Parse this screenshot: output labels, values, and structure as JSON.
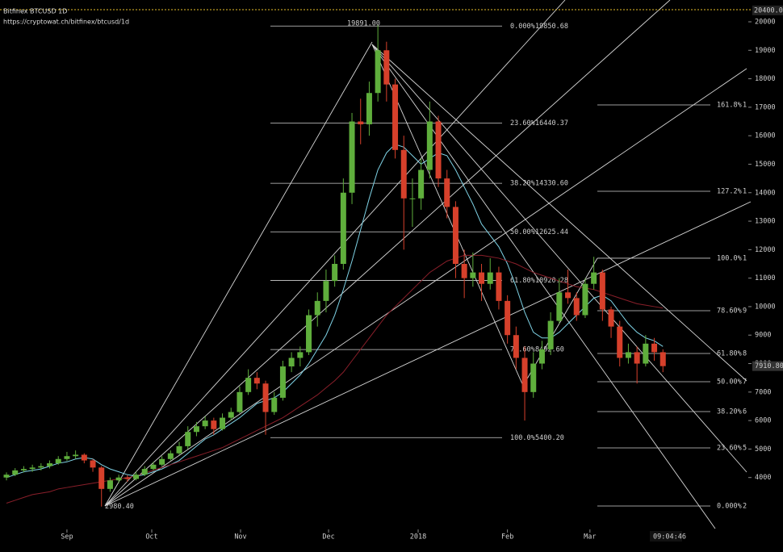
{
  "chart_data": {
    "type": "candlestick",
    "title": "Bitfinex BTCUSD 1D",
    "subtitle": "https://cryptowat.ch/bitfinex/btcusd/1d",
    "categories": [
      null,
      null,
      null,
      null,
      null,
      null,
      null,
      null,
      null,
      null,
      null,
      null,
      null,
      null,
      null,
      null,
      null,
      null,
      null,
      null,
      null,
      null,
      null,
      null,
      null,
      null,
      null,
      null,
      null,
      null,
      null,
      null,
      null,
      null,
      null,
      null,
      null,
      null,
      null,
      null,
      null,
      null,
      null,
      null,
      null,
      null,
      null,
      null,
      null,
      null,
      null,
      null,
      null,
      null,
      null,
      null,
      null,
      null,
      null,
      null,
      null,
      null,
      null,
      null,
      null,
      null,
      null,
      null,
      null,
      null,
      null,
      null,
      null,
      null,
      null,
      null,
      null
    ],
    "open": [
      4000,
      4100,
      4250,
      4300,
      4350,
      4400,
      4500,
      4650,
      4750,
      4800,
      4600,
      4350,
      3600,
      3900,
      4000,
      3950,
      4100,
      4300,
      4450,
      4650,
      4850,
      5100,
      5600,
      5800,
      6000,
      5700,
      6100,
      6300,
      7000,
      7500,
      7300,
      6300,
      6800,
      7900,
      8200,
      8400,
      9700,
      10200,
      10900,
      11500,
      14000,
      16500,
      16400,
      17500,
      19000,
      17800,
      15500,
      13800,
      13800,
      14800,
      16500,
      14500,
      13500,
      11500,
      11000,
      11200,
      10800,
      11200,
      10200,
      9000,
      8200,
      7000,
      8000,
      8500,
      9500,
      10500,
      10300,
      9700,
      10800,
      11200,
      9900,
      9300,
      8200,
      8400,
      8000,
      8700,
      8400
    ],
    "high": [
      4180,
      4330,
      4400,
      4450,
      4500,
      4600,
      4750,
      4900,
      4950,
      4850,
      4650,
      4400,
      4000,
      4100,
      4080,
      4200,
      4400,
      4550,
      4750,
      4950,
      5250,
      5800,
      5950,
      6150,
      6100,
      6250,
      6450,
      7200,
      7800,
      7700,
      7400,
      7000,
      8100,
      8400,
      8600,
      9900,
      10500,
      11300,
      11800,
      14500,
      16800,
      17300,
      17900,
      19891,
      19300,
      18000,
      16000,
      14500,
      15200,
      17200,
      16700,
      14800,
      13700,
      12000,
      11900,
      11500,
      11700,
      11400,
      10400,
      9300,
      8600,
      8400,
      8800,
      9800,
      11000,
      11300,
      10500,
      11000,
      11750,
      11300,
      10000,
      9500,
      8700,
      8600,
      9000,
      8900,
      8500
    ],
    "low": [
      3900,
      4050,
      4180,
      4200,
      4250,
      4320,
      4450,
      4580,
      4650,
      4500,
      4200,
      2980,
      3500,
      3800,
      3850,
      3900,
      4050,
      4250,
      4400,
      4600,
      4800,
      5000,
      5450,
      5700,
      5500,
      5650,
      6000,
      6250,
      6900,
      7100,
      5500,
      6200,
      6700,
      7700,
      7900,
      8300,
      9300,
      9800,
      10700,
      11300,
      13600,
      15700,
      16000,
      17200,
      17200,
      15200,
      12000,
      12800,
      13400,
      14500,
      14200,
      13100,
      11000,
      10300,
      10700,
      10200,
      10600,
      9900,
      8700,
      7800,
      6000,
      6800,
      7800,
      8300,
      9400,
      10100,
      9500,
      9600,
      10600,
      9500,
      8900,
      7900,
      8000,
      7300,
      7900,
      8100,
      7700
    ],
    "close": [
      4100,
      4250,
      4300,
      4350,
      4400,
      4500,
      4650,
      4750,
      4800,
      4600,
      4350,
      3600,
      3900,
      4000,
      3950,
      4100,
      4300,
      4450,
      4650,
      4850,
      5100,
      5600,
      5800,
      6000,
      5700,
      6100,
      6300,
      7000,
      7500,
      7300,
      6300,
      6800,
      7900,
      8200,
      8400,
      9700,
      10200,
      10900,
      11500,
      14000,
      16500,
      16400,
      17500,
      19000,
      17800,
      15500,
      13800,
      13800,
      14800,
      16500,
      14500,
      13500,
      11500,
      11000,
      11200,
      10800,
      11200,
      10200,
      9000,
      8200,
      7000,
      8000,
      8500,
      9500,
      10500,
      10300,
      9700,
      10800,
      11200,
      9900,
      9300,
      8200,
      8400,
      8000,
      8700,
      8400,
      7910.8
    ],
    "up_color": "#5fae3c",
    "down_color": "#d6402b",
    "series": [
      {
        "color": "#7fd3e6",
        "values": [
          4000,
          4100,
          4200,
          4250,
          4300,
          4400,
          4500,
          4550,
          4650,
          4700,
          4650,
          4450,
          4300,
          4200,
          4100,
          4050,
          4100,
          4200,
          4300,
          4450,
          4600,
          4850,
          5100,
          5350,
          5500,
          5700,
          5900,
          6100,
          6350,
          6600,
          6700,
          6800,
          7000,
          7300,
          7600,
          8000,
          8500,
          9000,
          9700,
          10600,
          11600,
          12700,
          13800,
          14800,
          15400,
          15700,
          15600,
          15300,
          15000,
          15200,
          15400,
          15300,
          14800,
          14200,
          13600,
          12900,
          12500,
          12100,
          11500,
          10700,
          9800,
          9100,
          8900,
          8900,
          9100,
          9400,
          9700,
          10000,
          10300,
          10400,
          10200,
          9800,
          9400,
          9100,
          8900,
          8800,
          8600
        ]
      },
      {
        "color": "#8a1f2a",
        "values": [
          3100,
          3200,
          3300,
          3400,
          3450,
          3500,
          3600,
          3650,
          3700,
          3750,
          3800,
          3850,
          3900,
          3950,
          4000,
          4050,
          4150,
          4250,
          4350,
          4450,
          4550,
          4650,
          4750,
          4850,
          4950,
          5050,
          5200,
          5350,
          5500,
          5650,
          5800,
          5950,
          6100,
          6300,
          6500,
          6700,
          6900,
          7150,
          7400,
          7700,
          8100,
          8500,
          8900,
          9300,
          9700,
          10000,
          10300,
          10600,
          10900,
          11200,
          11400,
          11600,
          11700,
          11800,
          11800,
          11800,
          11750,
          11700,
          11600,
          11500,
          11350,
          11200,
          11100,
          11000,
          10900,
          10800,
          10700,
          10650,
          10600,
          10500,
          10400,
          10300,
          10200,
          10100,
          10050,
          10000,
          9950
        ]
      }
    ],
    "xlim": [
      -0.75,
      88.5
    ],
    "xticks": [
      {
        "value": 7.0,
        "label": "Sep"
      },
      {
        "value": 16.82,
        "label": "Oct"
      },
      {
        "value": 27.1,
        "label": "Nov"
      },
      {
        "value": 37.29,
        "label": "Dec"
      },
      {
        "value": 47.66,
        "label": "2018"
      },
      {
        "value": 58.0,
        "label": "Feb"
      },
      {
        "value": 67.55,
        "label": "Mar"
      }
    ],
    "ylim": [
      1385,
      20765
    ],
    "yticks": [
      4000,
      5000,
      6000,
      7000,
      8000,
      9000,
      10000,
      11000,
      12000,
      13000,
      14000,
      15000,
      16000,
      17000,
      18000,
      19000,
      20000
    ],
    "grid": false,
    "fib_retracement": [
      {
        "ratio": "0.000%",
        "price": 19850.68,
        "price_label": "19850.68"
      },
      {
        "ratio": "23.60%",
        "price": 16440.37,
        "price_label": "16440.37"
      },
      {
        "ratio": "38.20%",
        "price": 14330.6,
        "price_label": "14330.60"
      },
      {
        "ratio": "50.00%",
        "price": 12625.44,
        "price_label": "12625.44"
      },
      {
        "ratio": "61.80%",
        "price": 10920.28,
        "price_label": "10920.28"
      },
      {
        "ratio": "78.60%",
        "price": 8492.6,
        "price_label": "8492.60"
      },
      {
        "ratio": "100.0%",
        "price": 5400.2,
        "price_label": "5400.20"
      }
    ],
    "fib_extension": [
      {
        "ratio": "161.8%",
        "price": 17082,
        "tail": "1"
      },
      {
        "ratio": "127.2%",
        "price": 14050,
        "tail": "1"
      },
      {
        "ratio": "100.0%",
        "price": 11700,
        "tail": "1"
      },
      {
        "ratio": "78.60%",
        "price": 9857,
        "tail": "9"
      },
      {
        "ratio": "61.80%",
        "price": 8355,
        "tail": "8"
      },
      {
        "ratio": "50.00%",
        "price": 7364,
        "tail": "7"
      },
      {
        "ratio": "38.20%",
        "price": 6315,
        "tail": "6"
      },
      {
        "ratio": "23.60%",
        "price": 5040,
        "tail": "5"
      },
      {
        "ratio": "0.000%",
        "price": 3000,
        "tail": "2"
      }
    ],
    "annotations": [
      {
        "text": "19891.00",
        "value": 19891
      },
      {
        "text": "2980.40",
        "value": 2980.4
      }
    ],
    "top_marker": {
      "value": 20400,
      "label": "20400.00"
    },
    "last_price_label": "7910.80",
    "timestamp": "09:04:46"
  }
}
